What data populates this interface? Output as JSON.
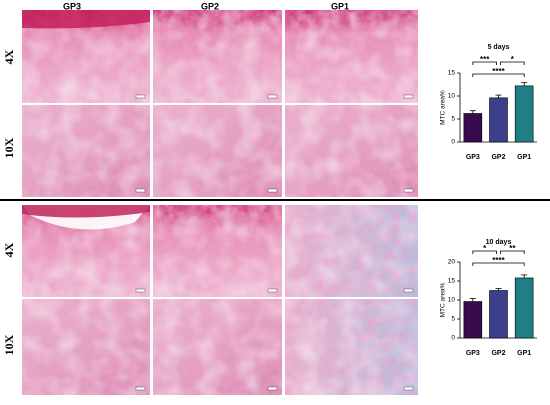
{
  "figure": {
    "column_labels": [
      "GP3",
      "GP2",
      "GP1"
    ],
    "row_labels": [
      "4X",
      "10X"
    ]
  },
  "chart_data": [
    {
      "type": "bar",
      "title": "5 days",
      "y_label": "MTC area%",
      "categories": [
        "GP3",
        "GP2",
        "GP1"
      ],
      "values": [
        6.2,
        9.6,
        12.2
      ],
      "errors": [
        0.6,
        0.6,
        0.7
      ],
      "colors": [
        "#3a0a4e",
        "#3b3f8c",
        "#1f7e86"
      ],
      "ylim": [
        0,
        15
      ],
      "yticks": [
        0,
        5,
        10,
        15
      ],
      "annotations": [
        "***",
        "*",
        "****"
      ]
    },
    {
      "type": "bar",
      "title": "10 days",
      "y_label": "MTC area%",
      "categories": [
        "GP3",
        "GP2",
        "GP1"
      ],
      "values": [
        9.6,
        12.5,
        15.8
      ],
      "errors": [
        0.8,
        0.5,
        0.8
      ],
      "colors": [
        "#3a0a4e",
        "#3b3f8c",
        "#1f7e86"
      ],
      "ylim": [
        0,
        20
      ],
      "yticks": [
        0,
        5,
        10,
        15,
        20
      ],
      "annotations": [
        "*",
        "**",
        "****"
      ]
    }
  ]
}
